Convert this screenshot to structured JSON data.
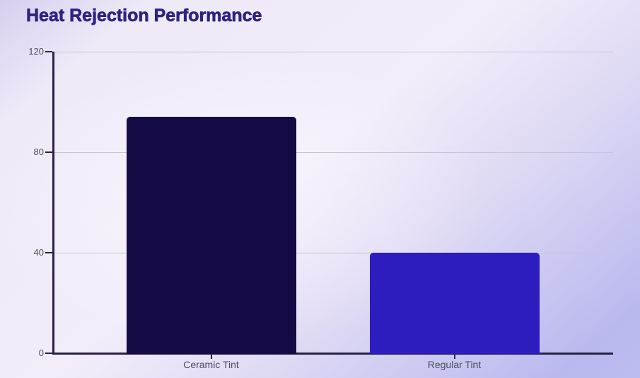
{
  "title": "Heat Rejection Performance",
  "colors": {
    "title": "#2e2383",
    "axis": "#272345",
    "grid": "#c8c4d6",
    "tick_label": "#4b4b5d",
    "category_label": "#4b4b5d"
  },
  "chart_data": {
    "type": "bar",
    "title": "Heat Rejection Performance",
    "categories": [
      "Ceramic Tint",
      "Regular Tint"
    ],
    "values": [
      94,
      40
    ],
    "bar_colors": [
      "#150b44",
      "#2d1cbe"
    ],
    "xlabel": "",
    "ylabel": "",
    "ylim": [
      0,
      120
    ],
    "yticks": [
      0,
      40,
      80,
      120
    ],
    "grid": true,
    "legend": false
  }
}
